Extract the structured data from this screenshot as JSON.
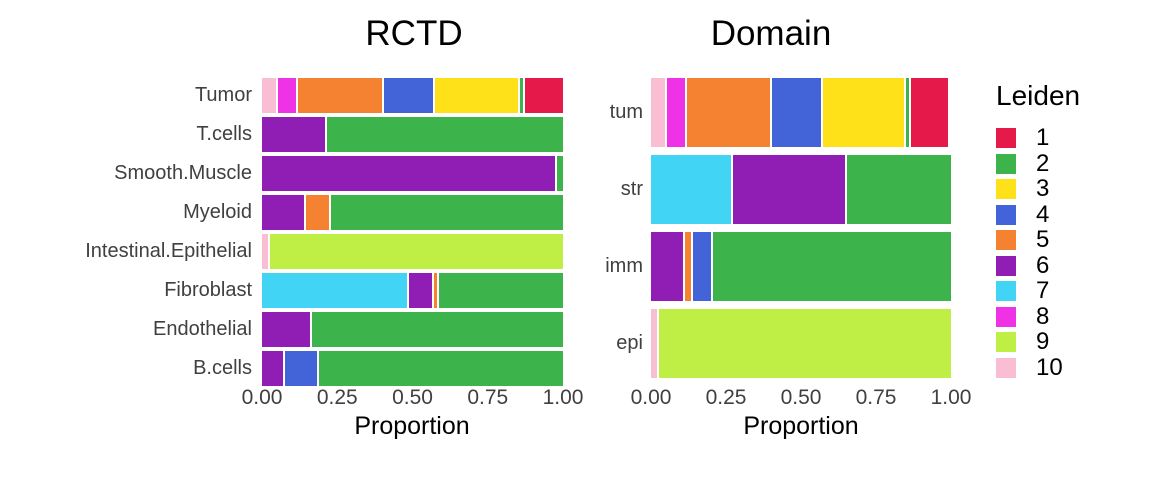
{
  "legend": {
    "title": "Leiden",
    "items": [
      {
        "label": "1",
        "color": "#e6194b"
      },
      {
        "label": "2",
        "color": "#3cb44b"
      },
      {
        "label": "3",
        "color": "#ffe119"
      },
      {
        "label": "4",
        "color": "#4363d8"
      },
      {
        "label": "5",
        "color": "#f58231"
      },
      {
        "label": "6",
        "color": "#911eb4"
      },
      {
        "label": "7",
        "color": "#42d4f4"
      },
      {
        "label": "8",
        "color": "#f032e6"
      },
      {
        "label": "9",
        "color": "#bfef45"
      },
      {
        "label": "10",
        "color": "#fabed4"
      }
    ]
  },
  "chart_data": [
    {
      "type": "bar",
      "subtype": "horizontal_stacked",
      "title": "RCTD",
      "xlabel": "Proportion",
      "xlim": [
        0,
        1
      ],
      "x_ticks": [
        "0.00",
        "0.25",
        "0.50",
        "0.75",
        "1.00"
      ],
      "grid": false,
      "categories": [
        "Tumor",
        "T.cells",
        "Smooth.Muscle",
        "Myeloid",
        "Intestinal.Epithelial",
        "Fibroblast",
        "Endothelial",
        "B.cells"
      ],
      "rows": [
        {
          "label": "Tumor",
          "segments": [
            {
              "leiden": "10",
              "value": 0.05
            },
            {
              "leiden": "8",
              "value": 0.06
            },
            {
              "leiden": "5",
              "value": 0.29
            },
            {
              "leiden": "4",
              "value": 0.17
            },
            {
              "leiden": "3",
              "value": 0.29
            },
            {
              "leiden": "2",
              "value": 0.01
            },
            {
              "leiden": "1",
              "value": 0.13
            }
          ]
        },
        {
          "label": "T.cells",
          "segments": [
            {
              "leiden": "6",
              "value": 0.21
            },
            {
              "leiden": "2",
              "value": 0.79
            }
          ]
        },
        {
          "label": "Smooth.Muscle",
          "segments": [
            {
              "leiden": "6",
              "value": 0.98
            },
            {
              "leiden": "2",
              "value": 0.02
            }
          ]
        },
        {
          "label": "Myeloid",
          "segments": [
            {
              "leiden": "6",
              "value": 0.14
            },
            {
              "leiden": "5",
              "value": 0.08
            },
            {
              "leiden": "2",
              "value": 0.78
            }
          ]
        },
        {
          "label": "Intestinal.Epithelial",
          "segments": [
            {
              "leiden": "10",
              "value": 0.02
            },
            {
              "leiden": "9",
              "value": 0.98
            }
          ]
        },
        {
          "label": "Fibroblast",
          "segments": [
            {
              "leiden": "7",
              "value": 0.49
            },
            {
              "leiden": "6",
              "value": 0.08
            },
            {
              "leiden": "5",
              "value": 0.01
            },
            {
              "leiden": "2",
              "value": 0.42
            }
          ]
        },
        {
          "label": "Endothelial",
          "segments": [
            {
              "leiden": "6",
              "value": 0.16
            },
            {
              "leiden": "2",
              "value": 0.84
            }
          ]
        },
        {
          "label": "B.cells",
          "segments": [
            {
              "leiden": "6",
              "value": 0.07
            },
            {
              "leiden": "4",
              "value": 0.11
            },
            {
              "leiden": "2",
              "value": 0.82
            }
          ]
        }
      ]
    },
    {
      "type": "bar",
      "subtype": "horizontal_stacked",
      "title": "Domain",
      "xlabel": "Proportion",
      "xlim": [
        0,
        1
      ],
      "x_ticks": [
        "0.00",
        "0.25",
        "0.50",
        "0.75",
        "1.00"
      ],
      "grid": false,
      "categories": [
        "tum",
        "str",
        "imm",
        "epi"
      ],
      "rows": [
        {
          "label": "tum",
          "segments": [
            {
              "leiden": "10",
              "value": 0.05
            },
            {
              "leiden": "8",
              "value": 0.06
            },
            {
              "leiden": "5",
              "value": 0.29
            },
            {
              "leiden": "4",
              "value": 0.17
            },
            {
              "leiden": "3",
              "value": 0.28
            },
            {
              "leiden": "2",
              "value": 0.01
            },
            {
              "leiden": "1",
              "value": 0.13
            }
          ]
        },
        {
          "label": "str",
          "segments": [
            {
              "leiden": "7",
              "value": 0.27
            },
            {
              "leiden": "6",
              "value": 0.38
            },
            {
              "leiden": "2",
              "value": 0.35
            }
          ]
        },
        {
          "label": "imm",
          "segments": [
            {
              "leiden": "6",
              "value": 0.11
            },
            {
              "leiden": "5",
              "value": 0.02
            },
            {
              "leiden": "4",
              "value": 0.06
            },
            {
              "leiden": "2",
              "value": 0.81
            }
          ]
        },
        {
          "label": "epi",
          "segments": [
            {
              "leiden": "10",
              "value": 0.02
            },
            {
              "leiden": "9",
              "value": 0.98
            }
          ]
        }
      ]
    }
  ]
}
